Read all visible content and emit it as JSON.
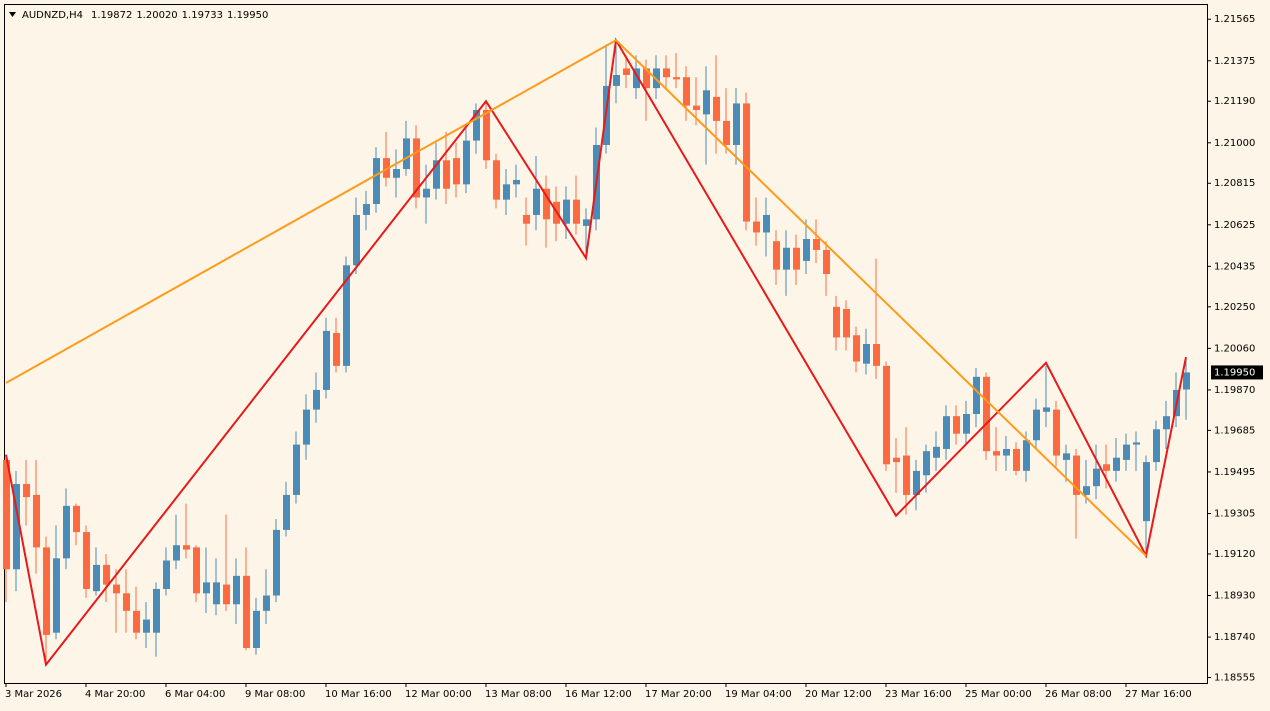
{
  "chart_data": {
    "type": "candlestick",
    "title": "AUDNZD,H4",
    "header_labels": [
      "1.19872",
      "1.20020",
      "1.19733",
      "1.19950"
    ],
    "categories": [
      "3 Mar 2026",
      null,
      null,
      null,
      null,
      null,
      null,
      null,
      "4 Mar 20:00",
      null,
      null,
      null,
      null,
      null,
      null,
      null,
      "6 Mar 04:00",
      null,
      null,
      null,
      null,
      null,
      null,
      null,
      "9 Mar 08:00",
      null,
      null,
      null,
      null,
      null,
      null,
      null,
      "10 Mar 16:00",
      null,
      null,
      null,
      null,
      null,
      null,
      null,
      "12 Mar 00:00",
      null,
      null,
      null,
      null,
      null,
      null,
      null,
      "13 Mar 08:00",
      null,
      null,
      null,
      null,
      null,
      null,
      null,
      "16 Mar 12:00",
      null,
      null,
      null,
      null,
      null,
      null,
      null,
      "17 Mar 20:00",
      null,
      null,
      null,
      null,
      null,
      null,
      null,
      "19 Mar 04:00",
      null,
      null,
      null,
      null,
      null,
      null,
      null,
      "20 Mar 12:00",
      null,
      null,
      null,
      null,
      null,
      null,
      null,
      "23 Mar 16:00",
      null,
      null,
      null,
      null,
      null,
      null,
      null,
      "25 Mar 00:00",
      null,
      null,
      null,
      null,
      null,
      null,
      null,
      "26 Mar 08:00",
      null,
      null,
      null,
      null,
      null,
      null,
      null,
      "27 Mar 16:00",
      null,
      null,
      null,
      null,
      null,
      null
    ],
    "open": [
      1.1955,
      1.1905,
      1.1944,
      1.1939,
      1.1915,
      1.1876,
      1.191,
      1.1934,
      1.1922,
      1.1895,
      1.1907,
      1.1898,
      1.1894,
      1.1886,
      1.1876,
      1.1876,
      1.1896,
      1.1909,
      1.1916,
      1.1915,
      1.1894,
      1.1889,
      1.1898,
      1.1889,
      1.1902,
      1.1869,
      1.1886,
      1.1893,
      1.1923,
      1.1939,
      1.1962,
      1.1978,
      1.1987,
      1.2013,
      1.1998,
      1.2044,
      1.2067,
      1.2072,
      1.2093,
      1.2084,
      1.2088,
      1.2102,
      1.2075,
      1.2079,
      1.2092,
      1.2093,
      1.2081,
      1.2101,
      1.2115,
      1.2092,
      1.2074,
      1.2081,
      1.2067,
      1.2067,
      1.2079,
      1.2073,
      1.2063,
      1.2074,
      1.2062,
      1.2065,
      1.2099,
      1.2126,
      1.2134,
      1.2125,
      1.2134,
      1.2125,
      1.2134,
      1.213,
      1.213,
      1.2117,
      1.2113,
      1.2121,
      1.211,
      1.2099,
      1.2118,
      1.2064,
      1.2059,
      1.2055,
      1.2042,
      1.2052,
      1.2046,
      1.2056,
      1.2051,
      1.2025,
      1.2024,
      1.2012,
      1.1999,
      1.2008,
      1.1998,
      1.1956,
      1.1957,
      1.1939,
      1.1948,
      1.1956,
      1.196,
      1.1975,
      1.1967,
      1.1976,
      1.1993,
      1.1959,
      1.1957,
      1.196,
      1.195,
      1.1964,
      1.1977,
      1.1978,
      1.1955,
      1.1957,
      1.1939,
      1.1943,
      1.1953,
      1.195,
      1.1955,
      1.1962,
      1.1927,
      1.1954,
      1.1969,
      1.1975,
      1.19872
    ],
    "high": [
      1.1957,
      1.195,
      1.1955,
      1.1955,
      1.192,
      1.1925,
      1.1942,
      1.1935,
      1.1925,
      1.1915,
      1.1912,
      1.1905,
      1.1905,
      1.1897,
      1.189,
      1.1899,
      1.1915,
      1.193,
      1.1935,
      1.1916,
      1.1915,
      1.191,
      1.193,
      1.191,
      1.1915,
      1.1892,
      1.1905,
      1.1928,
      1.1945,
      1.1968,
      1.1985,
      1.1995,
      1.202,
      1.202,
      1.2048,
      1.2075,
      1.2078,
      1.2098,
      1.2105,
      1.2097,
      1.211,
      1.2108,
      1.209,
      1.21,
      1.2105,
      1.21,
      1.2108,
      1.2118,
      1.2119,
      1.2095,
      1.2088,
      1.209,
      1.2075,
      1.2094,
      1.2085,
      1.208,
      1.208,
      1.2085,
      1.207,
      1.2107,
      1.2145,
      1.2147,
      1.214,
      1.214,
      1.2138,
      1.214,
      1.214,
      1.2141,
      1.2135,
      1.213,
      1.2135,
      1.214,
      1.2125,
      1.2125,
      1.2123,
      1.2075,
      1.2075,
      1.206,
      1.206,
      1.2058,
      1.2065,
      1.2065,
      1.2055,
      1.203,
      1.2028,
      1.2016,
      1.2015,
      1.2047,
      1.2,
      1.1965,
      1.197,
      1.1955,
      1.1962,
      1.1968,
      1.198,
      1.198,
      1.1982,
      1.1997,
      1.1995,
      1.197,
      1.1966,
      1.1963,
      1.1968,
      1.1983,
      1.1998,
      1.1982,
      1.1962,
      1.196,
      1.1955,
      1.1962,
      1.1962,
      1.1965,
      1.1967,
      1.1968,
      1.1957,
      1.1973,
      1.1982,
      1.1995,
      1.2002
    ],
    "low": [
      1.189,
      1.1895,
      1.1925,
      1.1903,
      1.1861,
      1.1873,
      1.1905,
      1.1916,
      1.1892,
      1.1893,
      1.189,
      1.1876,
      1.1876,
      1.1873,
      1.1869,
      1.1865,
      1.1893,
      1.1905,
      1.191,
      1.189,
      1.1885,
      1.1884,
      1.1886,
      1.188,
      1.1868,
      1.1866,
      1.188,
      1.189,
      1.192,
      1.1935,
      1.1955,
      1.1972,
      1.1983,
      1.1995,
      1.1995,
      1.204,
      1.206,
      1.2068,
      1.208,
      1.2075,
      1.2085,
      1.207,
      1.2063,
      1.2074,
      1.2072,
      1.2075,
      1.2077,
      1.2095,
      1.2088,
      1.207,
      1.2067,
      1.2075,
      1.2053,
      1.206,
      1.2052,
      1.2055,
      1.2056,
      1.2058,
      1.2047,
      1.206,
      1.2095,
      1.2118,
      1.2125,
      1.212,
      1.211,
      1.212,
      1.2125,
      1.2125,
      1.211,
      1.2108,
      1.209,
      1.2095,
      1.2095,
      1.209,
      1.206,
      1.2053,
      1.2048,
      1.2035,
      1.203,
      1.2035,
      1.204,
      1.2045,
      1.203,
      1.2005,
      1.2005,
      1.1995,
      1.1994,
      1.1992,
      1.195,
      1.194,
      1.193,
      1.1932,
      1.194,
      1.195,
      1.1955,
      1.1962,
      1.1962,
      1.197,
      1.1955,
      1.195,
      1.195,
      1.1948,
      1.1945,
      1.196,
      1.197,
      1.1952,
      1.1945,
      1.1919,
      1.1935,
      1.1937,
      1.1942,
      1.1945,
      1.195,
      1.195,
      1.1911,
      1.195,
      1.196,
      1.197,
      1.19733
    ],
    "close": [
      1.1905,
      1.1944,
      1.1938,
      1.1915,
      1.1875,
      1.191,
      1.1934,
      1.1922,
      1.1896,
      1.1907,
      1.1898,
      1.1894,
      1.1886,
      1.1876,
      1.1882,
      1.1896,
      1.1909,
      1.1916,
      1.1914,
      1.1894,
      1.1899,
      1.1899,
      1.1889,
      1.1902,
      1.1869,
      1.1886,
      1.1893,
      1.1923,
      1.1939,
      1.1962,
      1.1978,
      1.1987,
      1.2014,
      1.1998,
      1.2044,
      1.2067,
      1.2072,
      1.2093,
      1.2084,
      1.2088,
      1.2102,
      1.2075,
      1.2079,
      1.2092,
      1.2079,
      1.2081,
      1.2101,
      1.2115,
      1.2092,
      1.2074,
      1.2081,
      1.2083,
      1.2063,
      1.2079,
      1.2065,
      1.2063,
      1.2074,
      1.2063,
      1.2065,
      1.2099,
      1.2126,
      1.2131,
      1.2131,
      1.2134,
      1.2125,
      1.2134,
      1.213,
      1.2129,
      1.2117,
      1.2115,
      1.2124,
      1.211,
      1.2099,
      1.2118,
      1.2064,
      1.2059,
      1.2067,
      1.2042,
      1.2052,
      1.2042,
      1.2056,
      1.2051,
      1.204,
      1.2011,
      1.2011,
      1.2,
      1.2008,
      1.1998,
      1.1953,
      1.1954,
      1.1939,
      1.195,
      1.1959,
      1.1961,
      1.1975,
      1.1967,
      1.1976,
      1.1993,
      1.1959,
      1.1957,
      1.196,
      1.195,
      1.1964,
      1.1978,
      1.1979,
      1.1957,
      1.1958,
      1.1939,
      1.1943,
      1.1951,
      1.195,
      1.1956,
      1.1962,
      1.1963,
      1.1954,
      1.1969,
      1.1975,
      1.1987,
      1.1995
    ],
    "up_color": "#4a8bb8",
    "down_color": "#fb6a40",
    "lines": [
      {
        "color": "#e8191b",
        "x": [
          0,
          4,
          48,
          58,
          61,
          89,
          104,
          114,
          118
        ],
        "values": [
          1.19574,
          1.18614,
          1.2119,
          1.20473,
          1.21469,
          1.19295,
          1.19994,
          1.19112,
          1.2002
        ]
      },
      {
        "color": "#ff9a1a",
        "x": [
          0,
          61,
          114
        ],
        "values": [
          1.19902,
          1.21469,
          1.19112
        ]
      }
    ],
    "current_price": {
      "value": 1.1995,
      "label": "1.19950"
    },
    "ylim": [
      1.1853,
      1.2163
    ],
    "yticks": [
      1.21565,
      1.21375,
      {
        "value": 1.2119,
        "label": "1.21190"
      },
      {
        "value": 1.21,
        "label": "1.21000"
      },
      1.20815,
      1.20625,
      1.20435,
      {
        "value": 1.2025,
        "label": "1.20250"
      },
      {
        "value": 1.2006,
        "label": "1.20060"
      },
      {
        "value": 1.1987,
        "label": "1.19870"
      },
      1.19685,
      1.19495,
      1.19305,
      {
        "value": 1.1912,
        "label": "1.19120"
      },
      {
        "value": 1.1893,
        "label": "1.18930"
      },
      {
        "value": 1.1874,
        "label": "1.18740"
      },
      1.18555
    ],
    "grid": false
  }
}
